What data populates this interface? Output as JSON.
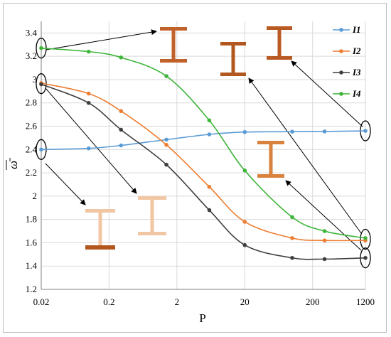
{
  "chart_data": {
    "type": "line",
    "title": "",
    "xlabel": "P",
    "ylabel": "ω̄",
    "x_scale": "log",
    "x_ticks": [
      0.02,
      0.2,
      2,
      20,
      200,
      1200
    ],
    "x_tick_labels": [
      "0.02",
      "0.2",
      "2",
      "20",
      "200",
      "1200"
    ],
    "y_ticks": [
      1.2,
      1.4,
      1.6,
      1.8,
      2.0,
      2.2,
      2.4,
      2.6,
      2.8,
      3.0,
      3.2,
      3.4
    ],
    "y_tick_labels": [
      "1.2",
      "1.4",
      "1.6",
      "1.8",
      "2",
      "2.2",
      "2.4",
      "2.6",
      "2.8",
      "3",
      "3.2",
      "3.4"
    ],
    "ylim": [
      1.2,
      3.5
    ],
    "xlim": [
      0.02,
      1200
    ],
    "grid": true,
    "legend_position": "top-right",
    "series": [
      {
        "name": "I1",
        "color": "#5b9bd5",
        "x": [
          0.02,
          0.1,
          0.3,
          1.4,
          6,
          20,
          100,
          300,
          1200
        ],
        "y": [
          2.4,
          2.41,
          2.435,
          2.485,
          2.53,
          2.55,
          2.553,
          2.555,
          2.56
        ]
      },
      {
        "name": "I2",
        "color": "#ed7d31",
        "x": [
          0.02,
          0.1,
          0.3,
          1.4,
          6,
          20,
          100,
          300,
          1200
        ],
        "y": [
          2.97,
          2.88,
          2.73,
          2.44,
          2.08,
          1.78,
          1.64,
          1.62,
          1.62
        ]
      },
      {
        "name": "I3",
        "color": "#3f3f3f",
        "x": [
          0.02,
          0.1,
          0.3,
          1.4,
          6,
          20,
          100,
          300,
          1200
        ],
        "y": [
          2.96,
          2.8,
          2.57,
          2.27,
          1.88,
          1.58,
          1.47,
          1.46,
          1.47
        ]
      },
      {
        "name": "I4",
        "color": "#3eb53a",
        "x": [
          0.02,
          0.1,
          0.3,
          1.4,
          6,
          20,
          100,
          300,
          1200
        ],
        "y": [
          3.27,
          3.24,
          3.19,
          3.03,
          2.65,
          2.22,
          1.82,
          1.7,
          1.64
        ]
      }
    ]
  }
}
